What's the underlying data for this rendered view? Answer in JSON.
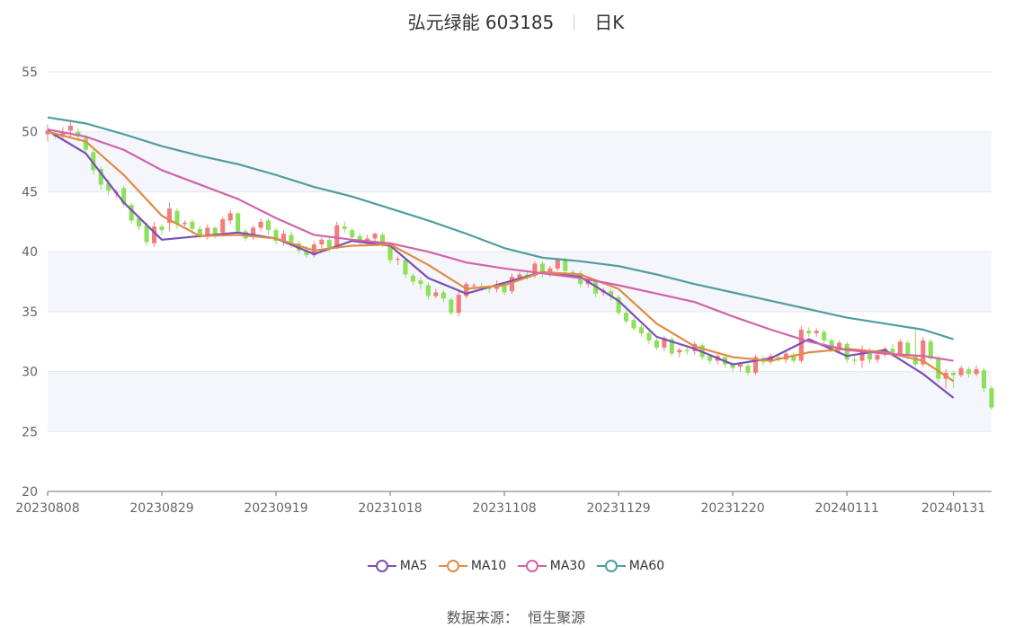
{
  "title": {
    "name": "弘元绿能 603185",
    "period": "日K"
  },
  "source": {
    "label": "数据来源：",
    "value": "恒生聚源"
  },
  "colors": {
    "up": "#f47b7b",
    "down": "#8ce05a",
    "ma5": "#7b4fb5",
    "ma10": "#e08b45",
    "ma30": "#d462aa",
    "ma60": "#4f9da0"
  },
  "chart_data": {
    "type": "candlestick",
    "ylim": [
      20,
      55
    ],
    "y_ticks": [
      "20",
      "25",
      "30",
      "35",
      "40",
      "45",
      "50",
      "55"
    ],
    "x_ticks": [
      {
        "index": 0,
        "label": "20230808"
      },
      {
        "index": 15,
        "label": "20230829"
      },
      {
        "index": 30,
        "label": "20230919"
      },
      {
        "index": 45,
        "label": "20231018"
      },
      {
        "index": 60,
        "label": "20231108"
      },
      {
        "index": 75,
        "label": "20231129"
      },
      {
        "index": 90,
        "label": "20231220"
      },
      {
        "index": 105,
        "label": "20240111"
      },
      {
        "index": 119,
        "label": "20240131"
      }
    ],
    "ohlc": [
      [
        49.8,
        50.1,
        49.2,
        50.6
      ],
      [
        49.7,
        49.6,
        49.4,
        50.1
      ],
      [
        49.6,
        50.0,
        49.3,
        50.4
      ],
      [
        50.1,
        50.5,
        49.6,
        51.0
      ],
      [
        50.0,
        49.6,
        49.2,
        50.3
      ],
      [
        49.5,
        48.5,
        48.2,
        49.7
      ],
      [
        48.3,
        46.8,
        46.4,
        48.5
      ],
      [
        46.9,
        45.6,
        45.2,
        47.1
      ],
      [
        45.7,
        45.1,
        44.7,
        46.0
      ],
      [
        44.9,
        45.0,
        44.5,
        45.2
      ],
      [
        45.3,
        44.0,
        43.7,
        45.5
      ],
      [
        43.9,
        42.6,
        42.3,
        44.1
      ],
      [
        42.8,
        42.1,
        41.8,
        43.0
      ],
      [
        42.2,
        40.8,
        40.5,
        42.4
      ],
      [
        40.7,
        42.1,
        40.4,
        42.5
      ],
      [
        42.1,
        41.8,
        41.4,
        42.3
      ],
      [
        42.4,
        43.6,
        41.7,
        44.1
      ],
      [
        43.4,
        42.3,
        41.9,
        43.6
      ],
      [
        42.3,
        42.4,
        42.1,
        42.6
      ],
      [
        42.5,
        41.9,
        41.5,
        42.7
      ],
      [
        41.9,
        41.3,
        41.1,
        42.2
      ],
      [
        41.3,
        42.0,
        41.0,
        42.3
      ],
      [
        42.0,
        41.5,
        41.1,
        42.1
      ],
      [
        41.6,
        42.7,
        41.4,
        42.9
      ],
      [
        42.6,
        43.2,
        42.3,
        43.5
      ],
      [
        43.2,
        41.7,
        41.5,
        43.3
      ],
      [
        41.7,
        41.1,
        40.9,
        41.9
      ],
      [
        41.2,
        42.0,
        41.0,
        42.2
      ],
      [
        42.0,
        42.5,
        41.7,
        42.8
      ],
      [
        42.6,
        41.8,
        41.4,
        42.8
      ],
      [
        41.8,
        40.9,
        40.6,
        42.0
      ],
      [
        40.9,
        41.5,
        40.5,
        41.8
      ],
      [
        41.4,
        40.8,
        40.3,
        41.7
      ],
      [
        40.7,
        40.1,
        39.8,
        40.9
      ],
      [
        40.1,
        39.7,
        39.5,
        40.3
      ],
      [
        39.7,
        40.6,
        39.5,
        40.9
      ],
      [
        40.6,
        41.0,
        40.3,
        41.2
      ],
      [
        41.0,
        40.3,
        40.0,
        41.2
      ],
      [
        40.4,
        42.2,
        40.2,
        42.5
      ],
      [
        42.1,
        41.9,
        41.6,
        42.5
      ],
      [
        41.8,
        41.2,
        40.9,
        42.0
      ],
      [
        41.3,
        40.8,
        40.5,
        41.6
      ],
      [
        40.9,
        41.1,
        40.6,
        41.4
      ],
      [
        41.1,
        41.5,
        40.8,
        41.6
      ],
      [
        41.4,
        40.6,
        40.4,
        41.6
      ],
      [
        40.6,
        39.3,
        39.0,
        40.8
      ],
      [
        39.4,
        39.4,
        38.9,
        39.6
      ],
      [
        39.3,
        38.1,
        37.8,
        39.4
      ],
      [
        38.0,
        37.5,
        37.2,
        38.2
      ],
      [
        37.6,
        37.3,
        36.9,
        37.9
      ],
      [
        37.2,
        36.3,
        36.0,
        37.4
      ],
      [
        36.3,
        36.6,
        36.1,
        36.9
      ],
      [
        36.6,
        36.1,
        35.8,
        36.8
      ],
      [
        36.0,
        34.9,
        34.7,
        36.2
      ],
      [
        34.9,
        36.4,
        34.6,
        36.8
      ],
      [
        36.3,
        37.3,
        36.1,
        37.5
      ],
      [
        37.2,
        37.2,
        36.9,
        37.4
      ],
      [
        37.1,
        37.0,
        36.7,
        37.4
      ],
      [
        37.0,
        36.9,
        36.6,
        37.2
      ],
      [
        36.9,
        37.3,
        36.6,
        37.6
      ],
      [
        37.2,
        36.6,
        36.4,
        37.4
      ],
      [
        36.7,
        37.9,
        36.5,
        38.2
      ],
      [
        37.8,
        38.1,
        37.6,
        38.3
      ],
      [
        38.1,
        37.9,
        37.6,
        38.3
      ],
      [
        38.0,
        39.0,
        37.8,
        39.2
      ],
      [
        39.0,
        38.2,
        37.9,
        39.2
      ],
      [
        38.1,
        38.6,
        37.9,
        38.8
      ],
      [
        38.6,
        39.3,
        38.4,
        39.5
      ],
      [
        39.3,
        38.4,
        38.1,
        39.5
      ],
      [
        38.3,
        38.2,
        37.9,
        38.5
      ],
      [
        38.2,
        37.3,
        37.0,
        38.4
      ],
      [
        37.3,
        37.6,
        37.0,
        37.9
      ],
      [
        37.5,
        36.5,
        36.2,
        37.7
      ],
      [
        36.6,
        36.8,
        36.3,
        37.0
      ],
      [
        36.7,
        36.3,
        35.9,
        36.9
      ],
      [
        36.2,
        34.9,
        34.7,
        36.4
      ],
      [
        34.9,
        34.2,
        34.0,
        35.1
      ],
      [
        34.3,
        33.6,
        33.4,
        34.5
      ],
      [
        33.7,
        33.2,
        32.9,
        33.9
      ],
      [
        33.2,
        32.6,
        32.3,
        33.4
      ],
      [
        32.6,
        32.0,
        31.8,
        32.8
      ],
      [
        32.0,
        32.8,
        31.7,
        33.0
      ],
      [
        32.7,
        31.5,
        31.3,
        32.9
      ],
      [
        31.6,
        31.8,
        31.2,
        32.0
      ],
      [
        31.8,
        31.7,
        31.4,
        32.0
      ],
      [
        31.7,
        32.3,
        31.4,
        32.5
      ],
      [
        32.2,
        31.2,
        31.0,
        32.4
      ],
      [
        31.3,
        30.9,
        30.6,
        31.5
      ],
      [
        30.9,
        31.3,
        30.6,
        31.5
      ],
      [
        31.2,
        30.6,
        30.3,
        31.4
      ],
      [
        30.6,
        30.3,
        30.0,
        30.8
      ],
      [
        30.4,
        30.6,
        30.0,
        30.8
      ],
      [
        30.5,
        29.9,
        29.7,
        30.7
      ],
      [
        29.9,
        31.2,
        29.7,
        31.4
      ],
      [
        31.1,
        30.8,
        30.5,
        31.3
      ],
      [
        30.8,
        31.3,
        30.6,
        31.5
      ],
      [
        31.2,
        31.0,
        30.8,
        31.4
      ],
      [
        31.0,
        31.5,
        30.7,
        31.7
      ],
      [
        31.4,
        30.9,
        30.7,
        31.6
      ],
      [
        30.9,
        33.5,
        30.7,
        33.8
      ],
      [
        33.4,
        33.2,
        32.9,
        33.7
      ],
      [
        33.2,
        33.4,
        32.9,
        33.6
      ],
      [
        33.3,
        32.6,
        32.3,
        33.5
      ],
      [
        32.6,
        31.8,
        31.6,
        32.8
      ],
      [
        31.8,
        32.4,
        31.5,
        32.6
      ],
      [
        32.3,
        31.0,
        30.7,
        32.5
      ],
      [
        31.0,
        30.9,
        30.6,
        31.3
      ],
      [
        30.9,
        31.8,
        30.3,
        32.2
      ],
      [
        31.7,
        31.0,
        30.7,
        32.0
      ],
      [
        31.0,
        31.4,
        30.7,
        31.6
      ],
      [
        31.4,
        31.9,
        31.2,
        32.1
      ],
      [
        31.9,
        31.5,
        31.2,
        32.3
      ],
      [
        31.5,
        32.5,
        31.3,
        32.7
      ],
      [
        32.4,
        31.3,
        31.0,
        32.6
      ],
      [
        31.3,
        30.6,
        30.4,
        33.7
      ],
      [
        30.6,
        32.6,
        30.4,
        32.9
      ],
      [
        32.5,
        31.1,
        30.9,
        32.7
      ],
      [
        31.1,
        29.4,
        29.1,
        31.3
      ],
      [
        29.4,
        29.9,
        28.6,
        30.2
      ],
      [
        29.9,
        29.7,
        28.6,
        30.1
      ],
      [
        29.7,
        30.3,
        29.5,
        30.5
      ],
      [
        30.2,
        29.8,
        29.5,
        30.4
      ],
      [
        29.8,
        30.2,
        29.6,
        30.5
      ],
      [
        30.1,
        28.6,
        28.3,
        30.3
      ],
      [
        28.6,
        27.0,
        26.8,
        28.8
      ]
    ],
    "series": [
      {
        "name": "MA5",
        "x": [
          0,
          5,
          10,
          15,
          20,
          25,
          30,
          35,
          40,
          45,
          50,
          55,
          60,
          65,
          70,
          75,
          80,
          85,
          90,
          95,
          100,
          105,
          110,
          115,
          119
        ],
        "values": [
          50.1,
          48.2,
          44.1,
          41.0,
          41.3,
          41.6,
          41.1,
          39.8,
          40.9,
          40.5,
          37.8,
          36.5,
          37.4,
          38.3,
          37.9,
          35.9,
          32.9,
          31.9,
          30.6,
          31.1,
          32.7,
          31.3,
          31.8,
          29.8,
          27.8
        ]
      },
      {
        "name": "MA10",
        "x": [
          0,
          5,
          10,
          15,
          20,
          25,
          30,
          35,
          40,
          45,
          50,
          55,
          60,
          65,
          70,
          75,
          80,
          85,
          90,
          95,
          100,
          105,
          110,
          115,
          119
        ],
        "values": [
          50.0,
          49.2,
          46.4,
          43.0,
          41.3,
          41.4,
          41.1,
          40.1,
          40.5,
          40.6,
          38.9,
          36.9,
          37.2,
          38.3,
          38.1,
          36.9,
          34.0,
          32.1,
          31.2,
          30.9,
          31.6,
          31.9,
          31.6,
          30.9,
          29.2
        ]
      },
      {
        "name": "MA30",
        "x": [
          0,
          5,
          10,
          15,
          20,
          25,
          30,
          35,
          40,
          45,
          50,
          55,
          60,
          65,
          70,
          75,
          80,
          85,
          90,
          95,
          100,
          105,
          110,
          115,
          119
        ],
        "values": [
          50.2,
          49.6,
          48.5,
          46.8,
          45.6,
          44.4,
          42.8,
          41.4,
          41.0,
          40.7,
          40.0,
          39.1,
          38.6,
          38.2,
          37.8,
          37.2,
          36.5,
          35.8,
          34.6,
          33.5,
          32.5,
          31.8,
          31.5,
          31.3,
          30.9
        ]
      },
      {
        "name": "MA60",
        "x": [
          0,
          5,
          10,
          15,
          20,
          25,
          30,
          35,
          40,
          45,
          50,
          55,
          60,
          65,
          70,
          75,
          80,
          85,
          90,
          95,
          100,
          105,
          110,
          115,
          119
        ],
        "values": [
          51.2,
          50.7,
          49.8,
          48.8,
          48.0,
          47.3,
          46.4,
          45.4,
          44.6,
          43.6,
          42.6,
          41.5,
          40.3,
          39.5,
          39.2,
          38.8,
          38.1,
          37.3,
          36.6,
          35.9,
          35.2,
          34.5,
          34.0,
          33.5,
          32.7
        ]
      }
    ]
  }
}
